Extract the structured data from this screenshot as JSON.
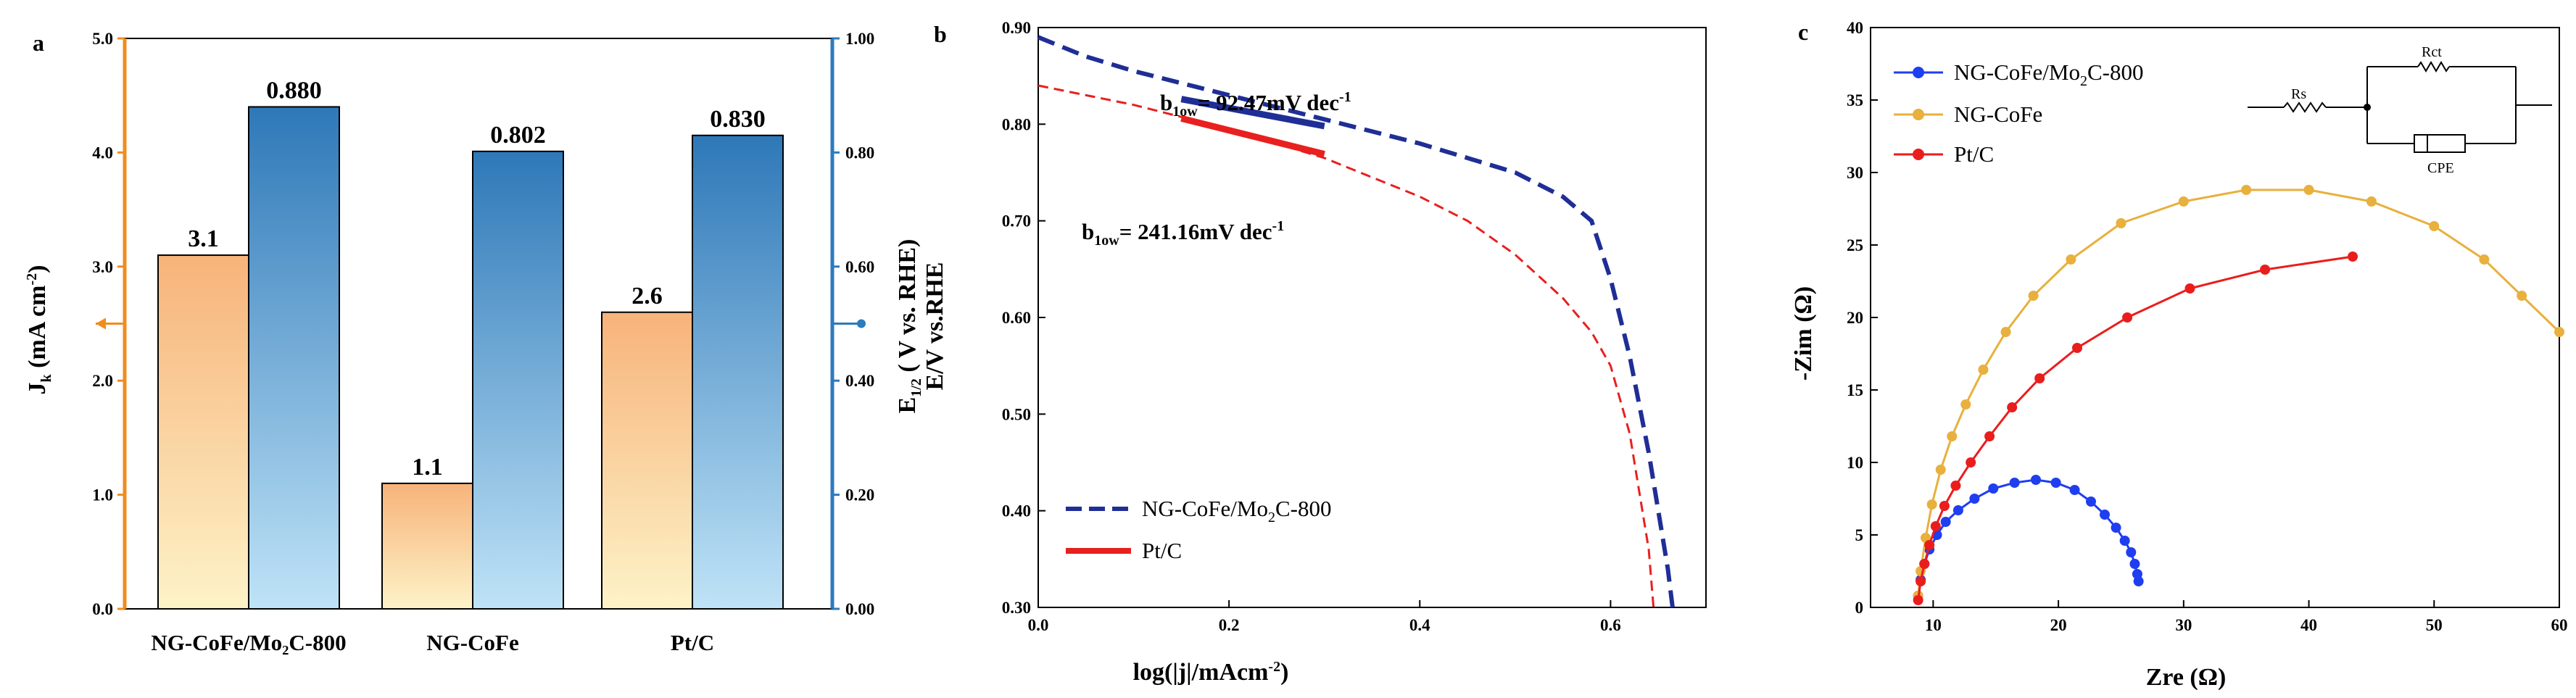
{
  "colors": {
    "left_axis": "#f08c1e",
    "right_axis": "#2b7bbd",
    "bar_orange_top": "#f7b37a",
    "bar_orange_bottom": "#fdf3c8",
    "bar_blue_top": "#2e78b8",
    "bar_blue_bottom": "#bfe3f7",
    "navy": "#1f2e96",
    "red": "#e8201f",
    "blue_marker": "#1f3ef0",
    "gold": "#e8b03d",
    "red_marker": "#ea1d1d"
  },
  "chart_data": [
    {
      "panel": "a",
      "type": "bar",
      "categories": [
        "NG-CoFe/Mo₂C-800",
        "NG-CoFe",
        "Pt/C"
      ],
      "series": [
        {
          "name": "Jk",
          "axis": "left",
          "values": [
            3.1,
            1.1,
            2.6
          ],
          "labels": [
            "3.1",
            "1.1",
            "2.6"
          ]
        },
        {
          "name": "E1/2",
          "axis": "right",
          "values": [
            0.88,
            0.802,
            0.83
          ],
          "labels": [
            "0.880",
            "0.802",
            "0.830"
          ]
        }
      ],
      "ylabel": "Jk (mA cm⁻²)",
      "ylabel_main": "J",
      "ylabel_sub": "k",
      "ylabel_rest": " (mA cm",
      "ylabel_sup": "-2",
      "ylabel_close": ")",
      "y2label": "E1/2 ( V vs. RHE)",
      "y2label_main": "E",
      "y2label_sub": "1/2",
      "y2label_rest": " ( V vs. RHE)",
      "ylim": [
        0,
        5
      ],
      "y2lim": [
        0,
        1
      ],
      "yticks": [
        "0.0",
        "1.0",
        "2.0",
        "3.0",
        "4.0",
        "5.0"
      ],
      "y2ticks": [
        "0.00",
        "0.20",
        "0.40",
        "0.60",
        "0.80",
        "1.00"
      ]
    },
    {
      "panel": "b",
      "type": "line",
      "xlabel": "log(|j|/mAcm⁻²)",
      "xlabel_main": "log(|j|/mAcm",
      "xlabel_sup": "-2",
      "xlabel_close": ")",
      "ylabel": "E/V vs.RHE",
      "xlim": [
        0,
        0.7
      ],
      "ylim": [
        0.3,
        0.9
      ],
      "xticks": [
        "0.0",
        "0.2",
        "0.4",
        "0.6"
      ],
      "yticks": [
        "0.30",
        "0.40",
        "0.50",
        "0.60",
        "0.70",
        "0.80",
        "0.90"
      ],
      "series": [
        {
          "name": "NG-CoFe/Mo₂C-800",
          "name_pre": "NG-CoFe/Mo",
          "name_sub": "2",
          "name_post": "C-800",
          "style": "dashed-navy",
          "x": [
            0.0,
            0.05,
            0.1,
            0.2,
            0.3,
            0.4,
            0.5,
            0.55,
            0.58,
            0.6,
            0.62,
            0.64,
            0.65,
            0.66,
            0.665
          ],
          "y": [
            0.89,
            0.87,
            0.855,
            0.83,
            0.805,
            0.78,
            0.75,
            0.725,
            0.7,
            0.64,
            0.56,
            0.46,
            0.4,
            0.34,
            0.3
          ]
        },
        {
          "name": "Pt/C",
          "style": "dashed-red",
          "x": [
            0.0,
            0.1,
            0.2,
            0.3,
            0.4,
            0.45,
            0.5,
            0.55,
            0.58,
            0.6,
            0.62,
            0.63,
            0.64,
            0.645
          ],
          "y": [
            0.84,
            0.82,
            0.795,
            0.765,
            0.725,
            0.7,
            0.665,
            0.62,
            0.585,
            0.55,
            0.48,
            0.42,
            0.36,
            0.3
          ]
        }
      ],
      "tafel_fits": [
        {
          "series": "NG-CoFe/Mo₂C-800",
          "x": [
            0.15,
            0.3
          ],
          "y": [
            0.826,
            0.798
          ],
          "label_pre": "b",
          "label_sub": "1ow",
          "label_post": "= 92.47mV dec",
          "label_sup": "-1"
        },
        {
          "series": "Pt/C",
          "x": [
            0.15,
            0.3
          ],
          "y": [
            0.806,
            0.769
          ],
          "label_pre": "b",
          "label_sub": "1ow",
          "label_post": "= 241.16mV dec",
          "label_sup": "-1"
        }
      ],
      "legend": [
        "NG-CoFe/Mo₂C-800",
        "Pt/C"
      ]
    },
    {
      "panel": "c",
      "type": "scatter",
      "xlabel": "Zre (Ω)",
      "xlabel_text": "Zre (Ω)",
      "ylabel": "-Zim (Ω)",
      "xlim": [
        5,
        60
      ],
      "ylim": [
        0,
        40
      ],
      "xticks": [
        "10",
        "20",
        "30",
        "40",
        "50",
        "60"
      ],
      "yticks": [
        "0",
        "5",
        "10",
        "15",
        "20",
        "25",
        "30",
        "35",
        "40"
      ],
      "circuit": {
        "rs": "Rs",
        "rct": "Rct",
        "cpe": "CPE"
      },
      "series": [
        {
          "name": "NG-CoFe/Mo₂C-800",
          "name_pre": "NG-CoFe/Mo",
          "name_sub": "2",
          "name_post": "C-800",
          "color_key": "blue_marker",
          "x": [
            8.8,
            9.0,
            9.3,
            9.7,
            10.3,
            11.0,
            12.0,
            13.3,
            14.8,
            16.5,
            18.2,
            19.8,
            21.3,
            22.6,
            23.7,
            24.6,
            25.3,
            25.8,
            26.1,
            26.3,
            26.4
          ],
          "y": [
            0.8,
            1.9,
            3.0,
            4.0,
            5.0,
            5.9,
            6.7,
            7.5,
            8.2,
            8.6,
            8.8,
            8.6,
            8.1,
            7.3,
            6.4,
            5.5,
            4.6,
            3.8,
            3.0,
            2.3,
            1.8
          ]
        },
        {
          "name": "NG-CoFe",
          "color_key": "gold",
          "x": [
            8.8,
            9.0,
            9.4,
            9.9,
            10.6,
            11.5,
            12.6,
            14.0,
            15.8,
            18.0,
            21.0,
            25.0,
            30.0,
            35.0,
            40.0,
            45.0,
            50.0,
            54.0,
            57.0,
            60.0
          ],
          "y": [
            0.8,
            2.5,
            4.8,
            7.1,
            9.5,
            11.8,
            14.0,
            16.4,
            19.0,
            21.5,
            24.0,
            26.5,
            28.0,
            28.8,
            28.8,
            28.0,
            26.3,
            24.0,
            21.5,
            19.0
          ]
        },
        {
          "name": "Pt/C",
          "color_key": "red_marker",
          "x": [
            8.8,
            9.0,
            9.3,
            9.7,
            10.2,
            10.9,
            11.8,
            13.0,
            14.5,
            16.3,
            18.5,
            21.5,
            25.5,
            30.5,
            36.5,
            43.5
          ],
          "y": [
            0.5,
            1.8,
            3.0,
            4.3,
            5.6,
            7.0,
            8.4,
            10.0,
            11.8,
            13.8,
            15.8,
            17.9,
            20.0,
            22.0,
            23.3,
            24.2
          ]
        }
      ],
      "legend": [
        "NG-CoFe/Mo₂C-800",
        "NG-CoFe",
        "Pt/C"
      ]
    }
  ],
  "panels": {
    "a": "a",
    "b": "b",
    "c": "c"
  }
}
